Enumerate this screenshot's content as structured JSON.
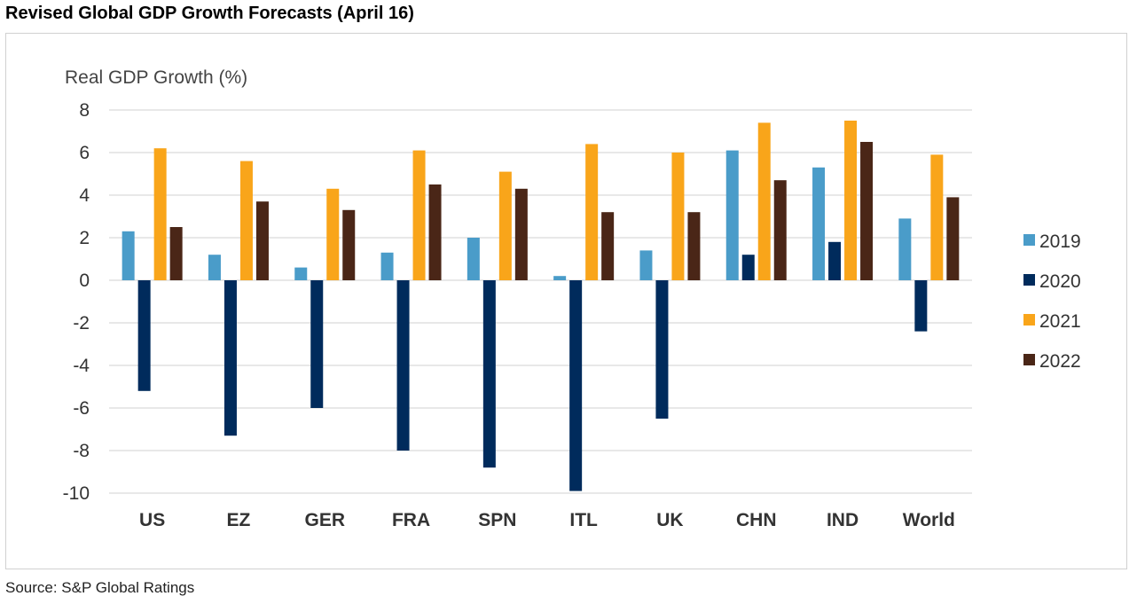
{
  "page": {
    "title": "Revised Global GDP Growth Forecasts (April 16)",
    "source": "Source: S&P Global Ratings"
  },
  "chart_data": {
    "type": "bar",
    "title": "Revised Global GDP Growth Forecasts (April 16)",
    "ylabel": "Real GDP Growth (%)",
    "xlabel": "",
    "ylim": [
      -10,
      8
    ],
    "yticks": [
      8,
      6,
      4,
      2,
      0,
      -2,
      -4,
      -6,
      -8,
      -10
    ],
    "grid": true,
    "legend_position": "right",
    "categories": [
      "US",
      "EZ",
      "GER",
      "FRA",
      "SPN",
      "ITL",
      "UK",
      "CHN",
      "IND",
      "World"
    ],
    "series": [
      {
        "name": "2019",
        "color": "#4a9cc9",
        "values": [
          2.3,
          1.2,
          0.6,
          1.3,
          2.0,
          0.2,
          1.4,
          6.1,
          5.3,
          2.9
        ]
      },
      {
        "name": "2020",
        "color": "#002b5c",
        "values": [
          -5.2,
          -7.3,
          -6.0,
          -8.0,
          -8.8,
          -9.9,
          -6.5,
          1.2,
          1.8,
          -2.4
        ]
      },
      {
        "name": "2021",
        "color": "#f9a51a",
        "values": [
          6.2,
          5.6,
          4.3,
          6.1,
          5.1,
          6.4,
          6.0,
          7.4,
          7.5,
          5.9
        ]
      },
      {
        "name": "2022",
        "color": "#4a2617",
        "values": [
          2.5,
          3.7,
          3.3,
          4.5,
          4.3,
          3.2,
          3.2,
          4.7,
          6.5,
          3.9
        ]
      }
    ]
  }
}
